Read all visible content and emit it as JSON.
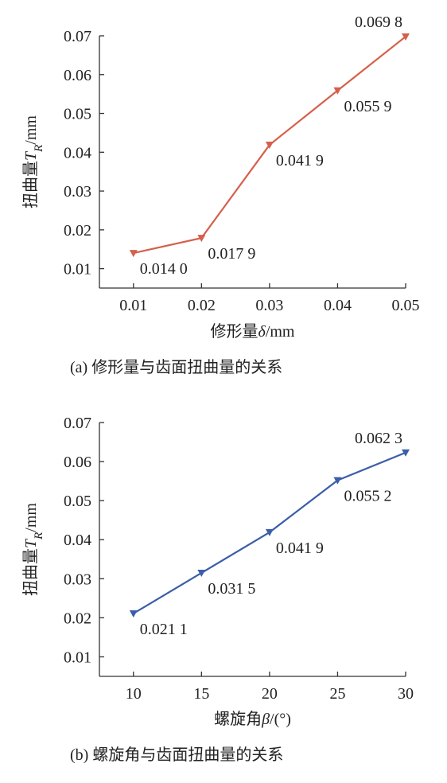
{
  "chart_data": [
    {
      "type": "line",
      "x": [
        0.01,
        0.02,
        0.03,
        0.04,
        0.05
      ],
      "series": [
        {
          "color": "#d5604b",
          "values": [
            0.014,
            0.0179,
            0.0419,
            0.0559,
            0.0698
          ],
          "value_labels": [
            "0.014 0",
            "0.017 9",
            "0.041 9",
            "0.055 9",
            "0.069 8"
          ]
        }
      ],
      "xlim": [
        0.005,
        0.05
      ],
      "xticks": [
        0.01,
        0.02,
        0.03,
        0.04,
        0.05
      ],
      "ylim": [
        0.005,
        0.07
      ],
      "yticks": [
        0.01,
        0.02,
        0.03,
        0.04,
        0.05,
        0.06,
        0.07
      ],
      "ylabel": [
        "扭曲量",
        "T",
        "R",
        "/mm"
      ],
      "xlabel": [
        "修形量",
        "δ",
        "/mm"
      ],
      "caption": "(a) 修形量与齿面扭曲量的关系"
    },
    {
      "type": "line",
      "x": [
        10,
        15,
        20,
        25,
        30
      ],
      "series": [
        {
          "color": "#3b5ea8",
          "values": [
            0.0211,
            0.0315,
            0.0419,
            0.0552,
            0.0623
          ],
          "value_labels": [
            "0.021 1",
            "0.031 5",
            "0.041 9",
            "0.055 2",
            "0.062 3"
          ]
        }
      ],
      "xlim": [
        7.5,
        30
      ],
      "xticks": [
        10,
        15,
        20,
        25,
        30
      ],
      "ylim": [
        0.005,
        0.07
      ],
      "yticks": [
        0.01,
        0.02,
        0.03,
        0.04,
        0.05,
        0.06,
        0.07
      ],
      "ylabel": [
        "扭曲量",
        "T",
        "R",
        "/mm"
      ],
      "xlabel": [
        "螺旋角",
        "β",
        "/(°)"
      ],
      "caption": "(b) 螺旋角与齿面扭曲量的关系"
    }
  ]
}
